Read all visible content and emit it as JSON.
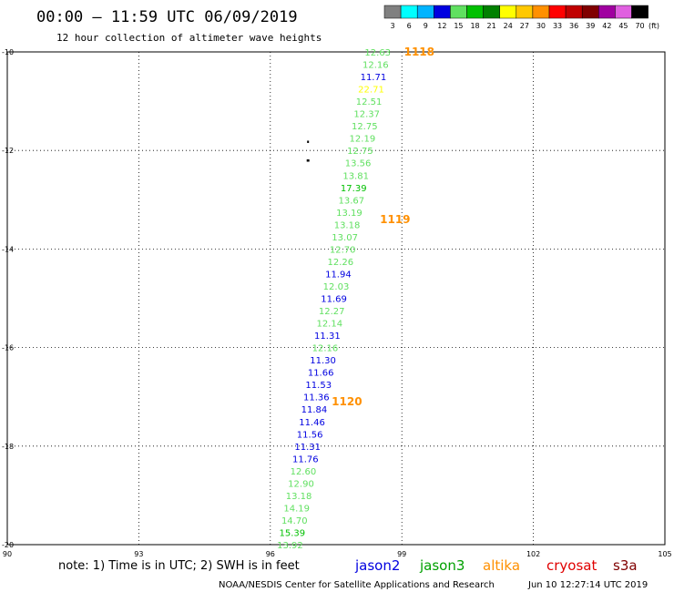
{
  "header": {
    "title": "00:00 – 11:59 UTC 06/09/2019",
    "subtitle": "12 hour collection of altimeter wave heights"
  },
  "scale": {
    "unit_label": "(ft)",
    "levels": [
      {
        "label": "3",
        "color": "#808080"
      },
      {
        "label": "6",
        "color": "#00ffff"
      },
      {
        "label": "9",
        "color": "#00b4ff"
      },
      {
        "label": "12",
        "color": "#0000e0"
      },
      {
        "label": "15",
        "color": "#60e060"
      },
      {
        "label": "18",
        "color": "#00c000"
      },
      {
        "label": "21",
        "color": "#008000"
      },
      {
        "label": "24",
        "color": "#ffff00"
      },
      {
        "label": "27",
        "color": "#ffc800"
      },
      {
        "label": "30",
        "color": "#ff9000"
      },
      {
        "label": "33",
        "color": "#ff0000"
      },
      {
        "label": "36",
        "color": "#c00000"
      },
      {
        "label": "39",
        "color": "#800000"
      },
      {
        "label": "42",
        "color": "#a000a0"
      },
      {
        "label": "45",
        "color": "#e060e0"
      },
      {
        "label": "70",
        "color": "#000000"
      }
    ]
  },
  "footer": {
    "note": "note: 1) Time is in UTC; 2) SWH is in feet",
    "credit": "NOAA/NESDIS Center for Satellite Applications and Research",
    "timestamp": "Jun 10 12:27:14 UTC 2019",
    "satellites": [
      {
        "name": "jason2",
        "color": "#0000e0"
      },
      {
        "name": "jason3",
        "color": "#00a000"
      },
      {
        "name": "altika",
        "color": "#ff9000"
      },
      {
        "name": "cryosat",
        "color": "#e00000"
      },
      {
        "name": "s3a",
        "color": "#800000"
      }
    ]
  },
  "chart_data": {
    "type": "scatter",
    "xlim": [
      90,
      105
    ],
    "ylim": [
      -20,
      -10
    ],
    "x_ticks": [
      "90",
      "93",
      "96",
      "99",
      "102",
      "105"
    ],
    "y_ticks": [
      "-10",
      "-12",
      "-14",
      "-16",
      "-18",
      "-20"
    ],
    "grid": true,
    "time_labels": [
      {
        "label": "1118",
        "x": 99.05,
        "y": -10.0,
        "color": "#ff9000"
      },
      {
        "label": "1119",
        "x": 98.5,
        "y": -13.4,
        "color": "#ff9000"
      },
      {
        "label": "1120",
        "x": 97.4,
        "y": -17.1,
        "color": "#ff9000"
      }
    ],
    "coast": [
      {
        "x": 96.86,
        "y": -11.82
      },
      {
        "x": 96.85,
        "y": -12.2
      },
      {
        "x": 96.87,
        "y": -12.2
      }
    ],
    "points": [
      {
        "x": 98.45,
        "y": -10.0,
        "value": "12.63",
        "color": "#60e060"
      },
      {
        "x": 98.4,
        "y": -10.25,
        "value": "12.16",
        "color": "#60e060"
      },
      {
        "x": 98.35,
        "y": -10.5,
        "value": "11.71",
        "color": "#0000e0"
      },
      {
        "x": 98.3,
        "y": -10.75,
        "value": "22.71",
        "color": "#ffff00"
      },
      {
        "x": 98.25,
        "y": -11.0,
        "value": "12.51",
        "color": "#60e060"
      },
      {
        "x": 98.2,
        "y": -11.25,
        "value": "12.37",
        "color": "#60e060"
      },
      {
        "x": 98.15,
        "y": -11.5,
        "value": "12.75",
        "color": "#60e060"
      },
      {
        "x": 98.1,
        "y": -11.75,
        "value": "12.19",
        "color": "#60e060"
      },
      {
        "x": 98.05,
        "y": -12.0,
        "value": "12.75",
        "color": "#60e060"
      },
      {
        "x": 98.0,
        "y": -12.25,
        "value": "13.56",
        "color": "#60e060"
      },
      {
        "x": 97.95,
        "y": -12.5,
        "value": "13.81",
        "color": "#60e060"
      },
      {
        "x": 97.9,
        "y": -12.75,
        "value": "17.39",
        "color": "#00c000"
      },
      {
        "x": 97.85,
        "y": -13.0,
        "value": "13.67",
        "color": "#60e060"
      },
      {
        "x": 97.8,
        "y": -13.25,
        "value": "13.19",
        "color": "#60e060"
      },
      {
        "x": 97.75,
        "y": -13.5,
        "value": "13.18",
        "color": "#60e060"
      },
      {
        "x": 97.7,
        "y": -13.75,
        "value": "13.07",
        "color": "#60e060"
      },
      {
        "x": 97.65,
        "y": -14.0,
        "value": "12.70",
        "color": "#60e060"
      },
      {
        "x": 97.6,
        "y": -14.25,
        "value": "12.26",
        "color": "#60e060"
      },
      {
        "x": 97.55,
        "y": -14.5,
        "value": "11.94",
        "color": "#0000e0"
      },
      {
        "x": 97.5,
        "y": -14.75,
        "value": "12.03",
        "color": "#60e060"
      },
      {
        "x": 97.45,
        "y": -15.0,
        "value": "11.69",
        "color": "#0000e0"
      },
      {
        "x": 97.4,
        "y": -15.25,
        "value": "12.27",
        "color": "#60e060"
      },
      {
        "x": 97.35,
        "y": -15.5,
        "value": "12.14",
        "color": "#60e060"
      },
      {
        "x": 97.3,
        "y": -15.75,
        "value": "11.31",
        "color": "#0000e0"
      },
      {
        "x": 97.25,
        "y": -16.0,
        "value": "12.16",
        "color": "#60e060"
      },
      {
        "x": 97.2,
        "y": -16.25,
        "value": "11.30",
        "color": "#0000e0"
      },
      {
        "x": 97.15,
        "y": -16.5,
        "value": "11.66",
        "color": "#0000e0"
      },
      {
        "x": 97.1,
        "y": -16.75,
        "value": "11.53",
        "color": "#0000e0"
      },
      {
        "x": 97.05,
        "y": -17.0,
        "value": "11.36",
        "color": "#0000e0"
      },
      {
        "x": 97.0,
        "y": -17.25,
        "value": "11.84",
        "color": "#0000e0"
      },
      {
        "x": 96.95,
        "y": -17.5,
        "value": "11.46",
        "color": "#0000e0"
      },
      {
        "x": 96.9,
        "y": -17.75,
        "value": "11.56",
        "color": "#0000e0"
      },
      {
        "x": 96.85,
        "y": -18.0,
        "value": "11.31",
        "color": "#0000e0"
      },
      {
        "x": 96.8,
        "y": -18.25,
        "value": "11.76",
        "color": "#0000e0"
      },
      {
        "x": 96.75,
        "y": -18.5,
        "value": "12.60",
        "color": "#60e060"
      },
      {
        "x": 96.7,
        "y": -18.75,
        "value": "12.90",
        "color": "#60e060"
      },
      {
        "x": 96.65,
        "y": -19.0,
        "value": "13.18",
        "color": "#60e060"
      },
      {
        "x": 96.6,
        "y": -19.25,
        "value": "14.19",
        "color": "#60e060"
      },
      {
        "x": 96.55,
        "y": -19.5,
        "value": "14.70",
        "color": "#60e060"
      },
      {
        "x": 96.5,
        "y": -19.75,
        "value": "15.39",
        "color": "#00c000"
      },
      {
        "x": 96.45,
        "y": -20.0,
        "value": "13.92",
        "color": "#60e060"
      }
    ]
  }
}
